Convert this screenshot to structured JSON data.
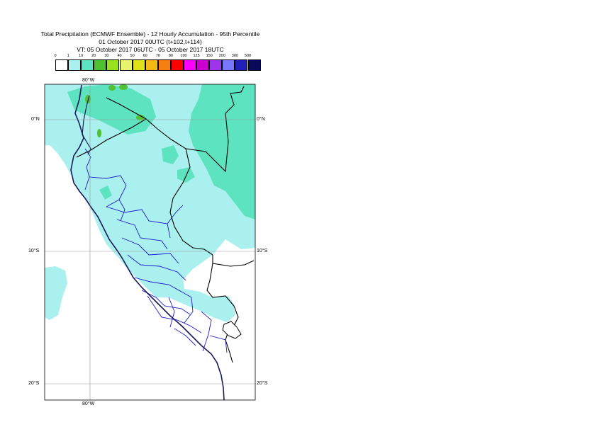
{
  "title": {
    "line1": "Total Precipitation (ECMWF Ensemble) - 12 Hourly Accumulation - 95th Percentile",
    "line2": "01 October 2017 00UTC (t+102,t+114)",
    "line3": "VT: 05 October 2017 06UTC - 05 October 2017 18UTC"
  },
  "legend": {
    "labels": [
      "0",
      "1",
      "10",
      "20",
      "30",
      "40",
      "50",
      "60",
      "70",
      "80",
      "100",
      "125",
      "150",
      "200",
      "300",
      "500"
    ],
    "colors": [
      "#ffffff",
      "#aaf0ee",
      "#5ee3c0",
      "#4ec232",
      "#99e11f",
      "#e6f56b",
      "#e1e11b",
      "#f5b915",
      "#f57f13",
      "#ff0000",
      "#ff00ff",
      "#cc00cc",
      "#9f35ea",
      "#7777ff",
      "#2020b8",
      "#0a0a5a"
    ]
  },
  "axes": {
    "lon_top": "80°W",
    "lon_bottom": "80°W",
    "lat_0_left": "0°N",
    "lat_0_right": "0°N",
    "lat_10_left": "10°S",
    "lat_10_right": "10°S",
    "lat_20_left": "20°S",
    "lat_20_right": "20°S"
  },
  "map": {
    "ocean_color": "#ffffff",
    "land_color": "#ffffff",
    "coast_color": "#000000",
    "region_border_color": "#1a1acc",
    "grid_color": "#999999"
  }
}
